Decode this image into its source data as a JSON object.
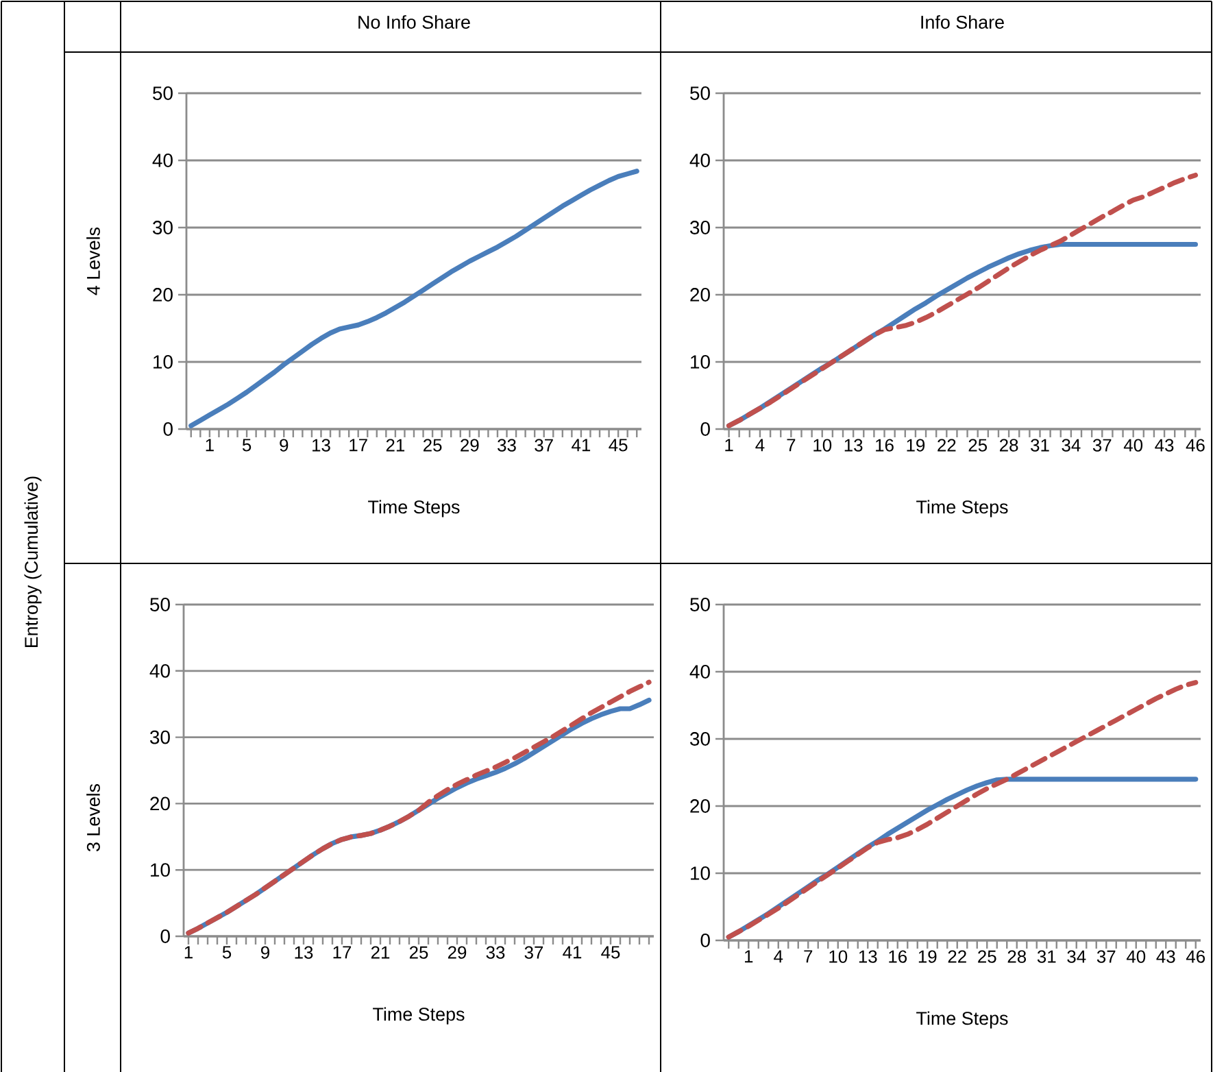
{
  "chart_data": [
    {
      "type": "line",
      "title": "No Info Share",
      "ylabel": "4 Levels",
      "xlabel": "Time Steps",
      "annotations": [
        "Entropy (Cumulative)"
      ],
      "categories": [
        null,
        null,
        "1",
        null,
        null,
        null,
        "5",
        null,
        null,
        null,
        "9",
        null,
        null,
        null,
        "13",
        null,
        null,
        null,
        "17",
        null,
        null,
        null,
        "21",
        null,
        null,
        null,
        "25",
        null,
        null,
        null,
        "29",
        null,
        null,
        null,
        "33",
        null,
        null,
        null,
        "37",
        null,
        null,
        null,
        "41",
        null,
        null,
        null,
        "45",
        null,
        null
      ],
      "series": [
        {
          "color": "#4a7ebb",
          "line_style": "solid",
          "values": [
            0.5,
            1.3,
            2.1,
            2.9,
            3.7,
            4.6,
            5.5,
            6.5,
            7.5,
            8.5,
            9.6,
            10.6,
            11.6,
            12.6,
            13.5,
            14.3,
            14.9,
            15.2,
            15.5,
            16.0,
            16.6,
            17.3,
            18.1,
            18.9,
            19.8,
            20.7,
            21.6,
            22.5,
            23.4,
            24.2,
            25.0,
            25.7,
            26.4,
            27.1,
            27.9,
            28.7,
            29.6,
            30.5,
            31.4,
            32.3,
            33.2,
            34.0,
            34.8,
            35.6,
            36.3,
            37.0,
            37.6,
            38.0,
            38.4
          ]
        }
      ],
      "ylim": [
        0,
        50
      ],
      "yticks": [
        0,
        10,
        20,
        30,
        40,
        50
      ],
      "grid": "y"
    },
    {
      "type": "line",
      "title": "Info Share",
      "xlabel": "Time Steps",
      "categories": [
        "1",
        null,
        null,
        "4",
        null,
        null,
        "7",
        null,
        null,
        "10",
        null,
        null,
        "13",
        null,
        null,
        "16",
        null,
        null,
        "19",
        null,
        null,
        "22",
        null,
        null,
        "25",
        null,
        null,
        "28",
        null,
        null,
        "31",
        null,
        null,
        "34",
        null,
        null,
        "37",
        null,
        null,
        "40",
        null,
        null,
        "43",
        null,
        null,
        "46"
      ],
      "series": [
        {
          "color": "#4a7ebb",
          "line_style": "solid",
          "values": [
            0.5,
            1.3,
            2.2,
            3.1,
            4.1,
            5.1,
            6.1,
            7.1,
            8.1,
            9.1,
            10.0,
            11.0,
            12.0,
            13.0,
            14.0,
            14.9,
            15.9,
            16.9,
            17.9,
            18.8,
            19.8,
            20.7,
            21.6,
            22.5,
            23.3,
            24.1,
            24.8,
            25.5,
            26.1,
            26.6,
            27.0,
            27.3,
            27.5,
            27.5,
            27.5,
            27.5,
            27.5,
            27.5,
            27.5,
            27.5,
            27.5,
            27.5,
            27.5,
            27.5,
            27.5,
            27.5
          ]
        },
        {
          "color": "#c0504d",
          "line_style": "dashed",
          "values": [
            0.5,
            1.3,
            2.2,
            3.1,
            4.0,
            5.0,
            6.0,
            7.0,
            8.0,
            9.0,
            10.0,
            11.0,
            12.0,
            13.0,
            14.0,
            14.8,
            15.1,
            15.4,
            15.9,
            16.6,
            17.4,
            18.3,
            19.2,
            20.1,
            21.0,
            22.0,
            23.0,
            24.0,
            24.9,
            25.8,
            26.6,
            27.3,
            28.0,
            28.9,
            29.8,
            30.7,
            31.6,
            32.4,
            33.3,
            34.1,
            34.6,
            35.3,
            36.0,
            36.7,
            37.3,
            37.8
          ]
        }
      ],
      "ylim": [
        0,
        50
      ],
      "yticks": [
        0,
        10,
        20,
        30,
        40,
        50
      ],
      "grid": "y"
    },
    {
      "type": "line",
      "ylabel": "3 Levels",
      "xlabel": "Time Steps",
      "categories": [
        "1",
        null,
        null,
        null,
        "5",
        null,
        null,
        null,
        "9",
        null,
        null,
        null,
        "13",
        null,
        null,
        null,
        "17",
        null,
        null,
        null,
        "21",
        null,
        null,
        null,
        "25",
        null,
        null,
        null,
        "29",
        null,
        null,
        null,
        "33",
        null,
        null,
        null,
        "37",
        null,
        null,
        null,
        "41",
        null,
        null,
        null,
        "45",
        null,
        null,
        null,
        null
      ],
      "series": [
        {
          "color": "#4a7ebb",
          "line_style": "solid",
          "values": [
            0.5,
            1.2,
            2.0,
            2.8,
            3.6,
            4.5,
            5.4,
            6.3,
            7.3,
            8.3,
            9.3,
            10.3,
            11.3,
            12.3,
            13.2,
            14.0,
            14.6,
            15.0,
            15.2,
            15.5,
            16.0,
            16.6,
            17.3,
            18.1,
            19.0,
            19.9,
            20.8,
            21.6,
            22.4,
            23.1,
            23.7,
            24.2,
            24.7,
            25.3,
            26.0,
            26.8,
            27.7,
            28.6,
            29.5,
            30.4,
            31.3,
            32.1,
            32.8,
            33.4,
            33.9,
            34.3,
            34.3,
            34.9,
            35.6
          ]
        },
        {
          "color": "#c0504d",
          "line_style": "dashed",
          "values": [
            0.5,
            1.2,
            2.0,
            2.8,
            3.6,
            4.5,
            5.4,
            6.3,
            7.3,
            8.3,
            9.3,
            10.3,
            11.3,
            12.3,
            13.2,
            14.0,
            14.6,
            15.0,
            15.2,
            15.5,
            16.0,
            16.6,
            17.3,
            18.1,
            19.0,
            20.2,
            21.2,
            22.1,
            22.9,
            23.6,
            24.3,
            24.9,
            25.5,
            26.2,
            26.9,
            27.7,
            28.5,
            29.3,
            30.1,
            31.0,
            31.9,
            32.8,
            33.7,
            34.5,
            35.3,
            36.1,
            36.9,
            37.6,
            38.3
          ]
        }
      ],
      "ylim": [
        0,
        50
      ],
      "yticks": [
        0,
        10,
        20,
        30,
        40,
        50
      ],
      "grid": "y"
    },
    {
      "type": "line",
      "xlabel": "Time Steps",
      "categories": [
        null,
        null,
        "1",
        null,
        null,
        "4",
        null,
        null,
        "7",
        null,
        null,
        "10",
        null,
        null,
        "13",
        null,
        null,
        "16",
        null,
        null,
        "19",
        null,
        null,
        "22",
        null,
        null,
        "25",
        null,
        null,
        "28",
        null,
        null,
        "31",
        null,
        null,
        "34",
        null,
        null,
        "37",
        null,
        null,
        "40",
        null,
        null,
        "43",
        null,
        null,
        "46"
      ],
      "series": [
        {
          "color": "#4a7ebb",
          "line_style": "solid",
          "values": [
            0.5,
            1.3,
            2.2,
            3.1,
            4.0,
            5.0,
            6.0,
            7.0,
            8.0,
            9.0,
            9.9,
            10.9,
            11.9,
            12.9,
            13.9,
            14.8,
            15.8,
            16.7,
            17.6,
            18.5,
            19.4,
            20.2,
            21.0,
            21.7,
            22.4,
            23.0,
            23.5,
            23.9,
            24.0,
            24.0,
            24.0,
            24.0,
            24.0,
            24.0,
            24.0,
            24.0,
            24.0,
            24.0,
            24.0,
            24.0,
            24.0,
            24.0,
            24.0,
            24.0,
            24.0,
            24.0,
            24.0,
            24.0
          ]
        },
        {
          "color": "#c0504d",
          "line_style": "dashed",
          "values": [
            0.5,
            1.3,
            2.1,
            3.0,
            3.9,
            4.8,
            5.8,
            6.8,
            7.8,
            8.8,
            9.8,
            10.8,
            11.8,
            12.8,
            13.8,
            14.6,
            15.0,
            15.3,
            15.8,
            16.5,
            17.3,
            18.2,
            19.1,
            20.0,
            20.9,
            21.8,
            22.6,
            23.3,
            24.0,
            24.8,
            25.6,
            26.4,
            27.2,
            28.0,
            28.8,
            29.6,
            30.4,
            31.2,
            32.0,
            32.8,
            33.6,
            34.4,
            35.2,
            36.0,
            36.7,
            37.4,
            38.0,
            38.4
          ]
        }
      ],
      "ylim": [
        0,
        50
      ],
      "yticks": [
        0,
        10,
        20,
        30,
        40,
        50
      ],
      "grid": "y"
    }
  ]
}
